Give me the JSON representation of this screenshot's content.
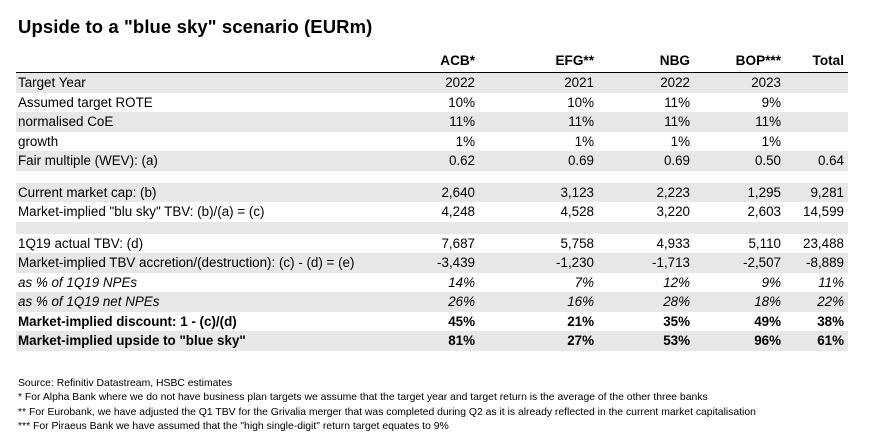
{
  "title": "Upside to a \"blue sky\" scenario (EURm)",
  "columns": [
    "ACB*",
    "EFG**",
    "NBG",
    "BOP***",
    "Total"
  ],
  "rows": [
    {
      "label": "Target Year",
      "values": [
        "2022",
        "2021",
        "2022",
        "2023",
        ""
      ],
      "style": "shaded"
    },
    {
      "label": "Assumed target ROTE",
      "values": [
        "10%",
        "10%",
        "11%",
        "9%",
        ""
      ],
      "style": "plain"
    },
    {
      "label": "normalised CoE",
      "values": [
        "11%",
        "11%",
        "11%",
        "11%",
        ""
      ],
      "style": "shaded"
    },
    {
      "label": "growth",
      "values": [
        "1%",
        "1%",
        "1%",
        "1%",
        ""
      ],
      "style": "plain"
    },
    {
      "label": "Fair multiple (WEV): (a)",
      "values": [
        "0.62",
        "0.69",
        "0.69",
        "0.50",
        "0.64"
      ],
      "style": "shaded"
    },
    {
      "label": "",
      "values": [
        "",
        "",
        "",
        "",
        ""
      ],
      "style": "gap"
    },
    {
      "label": "Current market cap: (b)",
      "values": [
        "2,640",
        "3,123",
        "2,223",
        "1,295",
        "9,281"
      ],
      "style": "shaded"
    },
    {
      "label": "Market-implied \"blu sky\" TBV: (b)/(a) = (c)",
      "values": [
        "4,248",
        "4,528",
        "3,220",
        "2,603",
        "14,599"
      ],
      "style": "plain"
    },
    {
      "label": "",
      "values": [
        "",
        "",
        "",
        "",
        ""
      ],
      "style": "gap-shaded"
    },
    {
      "label": "1Q19 actual TBV: (d)",
      "values": [
        "7,687",
        "5,758",
        "4,933",
        "5,110",
        "23,488"
      ],
      "style": "plain"
    },
    {
      "label": "Market-implied TBV accretion/(destruction): (c) - (d) = (e)",
      "values": [
        "-3,439",
        "-1,230",
        "-1,713",
        "-2,507",
        "-8,889"
      ],
      "style": "shaded"
    },
    {
      "label": "as % of 1Q19 NPEs",
      "values": [
        "14%",
        "7%",
        "12%",
        "9%",
        "11%"
      ],
      "style": "italic"
    },
    {
      "label": "as % of 1Q19 net NPEs",
      "values": [
        "26%",
        "16%",
        "28%",
        "18%",
        "22%"
      ],
      "style": "italic-shaded"
    },
    {
      "label": "Market-implied discount: 1 - (c)/(d)",
      "values": [
        "45%",
        "21%",
        "35%",
        "49%",
        "38%"
      ],
      "style": "bold"
    },
    {
      "label": "Market-implied upside to \"blue sky\"",
      "values": [
        "81%",
        "27%",
        "53%",
        "96%",
        "61%"
      ],
      "style": "bold-shaded"
    }
  ],
  "footnotes": [
    "Source: Refinitiv Datastream, HSBC estimates",
    "* For Alpha Bank where we do not have business plan targets we assume that the target year and target return is the average of the other three banks",
    "** For Eurobank, we have adjusted the Q1 TBV for the Grivalia merger that was completed during Q2 as it is already reflected in the current market capitalisation",
    "*** For Piraeus Bank we have assumed that the \"high single-digit\" return target equates to 9%"
  ]
}
